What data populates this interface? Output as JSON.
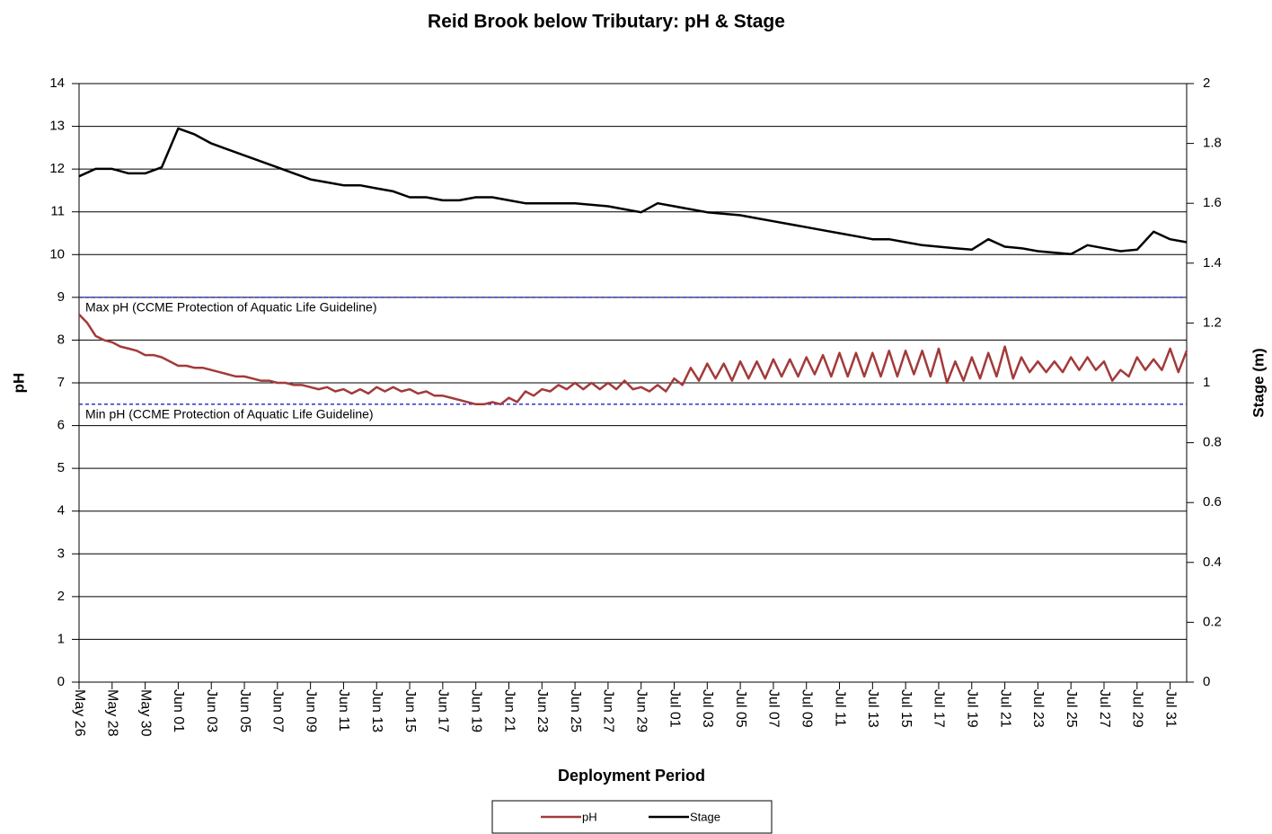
{
  "chart_data": {
    "type": "line",
    "title": "Reid Brook below Tributary: pH & Stage",
    "x_label": "Deployment Period",
    "y_label": "pH",
    "y2_label": "Stage (m)",
    "xlim": [
      0,
      67
    ],
    "xticks": [
      {
        "value": 0,
        "label": "May 26"
      },
      {
        "value": 2,
        "label": "May 28"
      },
      {
        "value": 4,
        "label": "May 30"
      },
      {
        "value": 6,
        "label": "Jun 01"
      },
      {
        "value": 8,
        "label": "Jun 03"
      },
      {
        "value": 10,
        "label": "Jun 05"
      },
      {
        "value": 12,
        "label": "Jun 07"
      },
      {
        "value": 14,
        "label": "Jun 09"
      },
      {
        "value": 16,
        "label": "Jun 11"
      },
      {
        "value": 18,
        "label": "Jun 13"
      },
      {
        "value": 20,
        "label": "Jun 15"
      },
      {
        "value": 22,
        "label": "Jun 17"
      },
      {
        "value": 24,
        "label": "Jun 19"
      },
      {
        "value": 26,
        "label": "Jun 21"
      },
      {
        "value": 28,
        "label": "Jun 23"
      },
      {
        "value": 30,
        "label": "Jun 25"
      },
      {
        "value": 32,
        "label": "Jun 27"
      },
      {
        "value": 34,
        "label": "Jun 29"
      },
      {
        "value": 36,
        "label": "Jul 01"
      },
      {
        "value": 38,
        "label": "Jul 03"
      },
      {
        "value": 40,
        "label": "Jul 05"
      },
      {
        "value": 42,
        "label": "Jul 07"
      },
      {
        "value": 44,
        "label": "Jul 09"
      },
      {
        "value": 46,
        "label": "Jul 11"
      },
      {
        "value": 48,
        "label": "Jul 13"
      },
      {
        "value": 50,
        "label": "Jul 15"
      },
      {
        "value": 52,
        "label": "Jul 17"
      },
      {
        "value": 54,
        "label": "Jul 19"
      },
      {
        "value": 56,
        "label": "Jul 21"
      },
      {
        "value": 58,
        "label": "Jul 23"
      },
      {
        "value": 60,
        "label": "Jul 25"
      },
      {
        "value": 62,
        "label": "Jul 27"
      },
      {
        "value": 64,
        "label": "Jul 29"
      },
      {
        "value": 66,
        "label": "Jul 31"
      }
    ],
    "ylim": [
      0,
      14
    ],
    "yticks": [
      0,
      1,
      2,
      3,
      4,
      5,
      6,
      7,
      8,
      9,
      10,
      11,
      12,
      13,
      14
    ],
    "y2lim": [
      0,
      2
    ],
    "y2ticks": [
      0,
      0.2,
      0.4,
      0.6,
      0.8,
      1,
      1.2,
      1.4,
      1.6,
      1.8,
      2
    ],
    "grid": true,
    "reference_lines": [
      {
        "value": 9,
        "label": "Max pH  (CCME  Protection of Aquatic Life Guideline)",
        "color": "#3333cc"
      },
      {
        "value": 6.5,
        "label": "Min pH  (CCME  Protection of Aquatic Life Guideline)",
        "color": "#3333cc"
      }
    ],
    "series": [
      {
        "name": "pH",
        "color": "#a33a3a",
        "x": [
          0,
          0.5,
          1,
          1.5,
          2,
          2.5,
          3,
          3.5,
          4,
          4.5,
          5,
          5.5,
          6,
          6.5,
          7,
          7.5,
          8,
          8.5,
          9,
          9.5,
          10,
          10.5,
          11,
          11.5,
          12,
          12.5,
          13,
          13.5,
          14,
          14.5,
          15,
          15.5,
          16,
          16.5,
          17,
          17.5,
          18,
          18.5,
          19,
          19.5,
          20,
          20.5,
          21,
          21.5,
          22,
          22.5,
          23,
          23.5,
          24,
          24.5,
          25,
          25.5,
          26,
          26.5,
          27,
          27.5,
          28,
          28.5,
          29,
          29.5,
          30,
          30.5,
          31,
          31.5,
          32,
          32.5,
          33,
          33.5,
          34,
          34.5,
          35,
          35.5,
          36,
          36.5,
          37,
          37.5,
          38,
          38.5,
          39,
          39.5,
          40,
          40.5,
          41,
          41.5,
          42,
          42.5,
          43,
          43.5,
          44,
          44.5,
          45,
          45.5,
          46,
          46.5,
          47,
          47.5,
          48,
          48.5,
          49,
          49.5,
          50,
          50.5,
          51,
          51.5,
          52,
          52.5,
          53,
          53.5,
          54,
          54.5,
          55,
          55.5,
          56,
          56.5,
          57,
          57.5,
          58,
          58.5,
          59,
          59.5,
          60,
          60.5,
          61,
          61.5,
          62,
          62.5,
          63,
          63.5,
          64,
          64.5,
          65,
          65.5,
          66,
          66.5,
          67
        ],
        "values": [
          8.6,
          8.4,
          8.1,
          8.0,
          7.95,
          7.85,
          7.8,
          7.75,
          7.65,
          7.65,
          7.6,
          7.5,
          7.4,
          7.4,
          7.35,
          7.35,
          7.3,
          7.25,
          7.2,
          7.15,
          7.15,
          7.1,
          7.05,
          7.05,
          7.0,
          7.0,
          6.95,
          6.95,
          6.9,
          6.85,
          6.9,
          6.8,
          6.85,
          6.75,
          6.85,
          6.75,
          6.9,
          6.8,
          6.9,
          6.8,
          6.85,
          6.75,
          6.8,
          6.7,
          6.7,
          6.65,
          6.6,
          6.55,
          6.5,
          6.5,
          6.55,
          6.5,
          6.65,
          6.55,
          6.8,
          6.7,
          6.85,
          6.8,
          6.95,
          6.85,
          7.0,
          6.85,
          7.0,
          6.85,
          7.0,
          6.85,
          7.05,
          6.85,
          6.9,
          6.8,
          6.95,
          6.8,
          7.1,
          6.95,
          7.35,
          7.05,
          7.45,
          7.1,
          7.45,
          7.05,
          7.5,
          7.1,
          7.5,
          7.1,
          7.55,
          7.15,
          7.55,
          7.15,
          7.6,
          7.2,
          7.65,
          7.15,
          7.7,
          7.15,
          7.7,
          7.15,
          7.7,
          7.15,
          7.75,
          7.15,
          7.75,
          7.2,
          7.75,
          7.15,
          7.8,
          7.0,
          7.5,
          7.05,
          7.6,
          7.1,
          7.7,
          7.15,
          7.85,
          7.1,
          7.6,
          7.25,
          7.5,
          7.25,
          7.5,
          7.25,
          7.6,
          7.3,
          7.6,
          7.3,
          7.5,
          7.05,
          7.3,
          7.15,
          7.6,
          7.3,
          7.55,
          7.3,
          7.8,
          7.25,
          7.75
        ]
      },
      {
        "name": "Stage",
        "color": "#000000",
        "axis": "y2",
        "x": [
          0,
          1,
          2,
          3,
          4,
          5,
          6,
          7,
          8,
          9,
          10,
          11,
          12,
          13,
          14,
          15,
          16,
          17,
          18,
          19,
          20,
          21,
          22,
          23,
          24,
          25,
          26,
          27,
          28,
          29,
          30,
          31,
          32,
          33,
          34,
          35,
          36,
          37,
          38,
          39,
          40,
          41,
          42,
          43,
          44,
          45,
          46,
          47,
          48,
          49,
          50,
          51,
          52,
          53,
          54,
          55,
          56,
          57,
          58,
          59,
          60,
          61,
          62,
          63,
          64,
          65,
          66,
          67
        ],
        "values": [
          1.69,
          1.715,
          1.715,
          1.7,
          1.7,
          1.72,
          1.85,
          1.83,
          1.8,
          1.78,
          1.76,
          1.74,
          1.72,
          1.7,
          1.68,
          1.67,
          1.66,
          1.66,
          1.65,
          1.64,
          1.62,
          1.62,
          1.61,
          1.61,
          1.62,
          1.62,
          1.61,
          1.6,
          1.6,
          1.6,
          1.6,
          1.595,
          1.59,
          1.58,
          1.57,
          1.6,
          1.59,
          1.58,
          1.57,
          1.565,
          1.56,
          1.55,
          1.54,
          1.53,
          1.52,
          1.51,
          1.5,
          1.49,
          1.48,
          1.48,
          1.47,
          1.46,
          1.455,
          1.45,
          1.445,
          1.48,
          1.455,
          1.45,
          1.44,
          1.435,
          1.43,
          1.46,
          1.45,
          1.44,
          1.445,
          1.505,
          1.48,
          1.47
        ]
      }
    ]
  }
}
